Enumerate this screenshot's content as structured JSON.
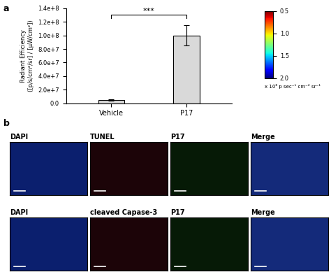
{
  "chart_data": {
    "type": "bar",
    "categories": [
      "Vehicle",
      "P17"
    ],
    "values": [
      5000000,
      100000000
    ],
    "errors": [
      1000000,
      15000000
    ],
    "color": "#d9d9d9",
    "ylabel": "Radiant Efficiency\n([p/s/cm²/sr] / [µW/cm²])",
    "ylim": [
      0,
      140000000
    ],
    "yticks": [
      {
        "value": 0,
        "label": "0.0"
      },
      {
        "value": 20000000,
        "label": "2.0e+7"
      },
      {
        "value": 40000000,
        "label": "4.0e+7"
      },
      {
        "value": 60000000,
        "label": "6.0e+7"
      },
      {
        "value": 80000000,
        "label": "8.0e+7"
      },
      {
        "value": 100000000,
        "label": "1.0e+8"
      },
      {
        "value": 120000000,
        "label": "1.2e+8"
      },
      {
        "value": 140000000,
        "label": "1.4e+8"
      }
    ],
    "significance": "***",
    "colorbar_range": [
      0.5,
      2.0
    ],
    "colorbar_ticks": [
      0.5,
      1.0,
      1.5,
      2.0
    ],
    "colorbar_label": "x 10⁸ p sec⁻¹ cm⁻² sr⁻¹"
  },
  "panel_labels": [
    "a",
    "b"
  ],
  "images": {
    "rows": [
      [
        "DAPI",
        "TUNEL",
        "P17",
        "Merge"
      ],
      [
        "DAPI",
        "cleaved Capase-3",
        "P17",
        "Merge"
      ]
    ]
  }
}
